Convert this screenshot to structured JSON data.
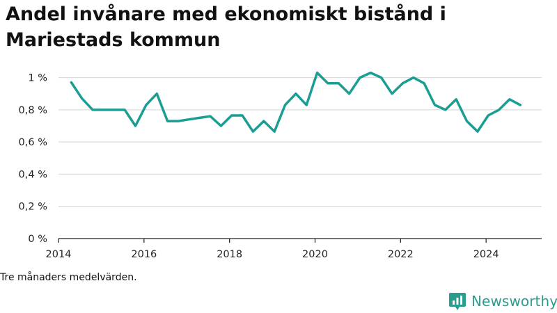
{
  "title": "Andel invånare med ekonomiskt bistånd i Mariestads kommun",
  "footnote": "Tre månaders medelvärden.",
  "brand": {
    "name": "Newsworthy",
    "icon": "newsworthy-logo-icon",
    "color": "#2a9d8f"
  },
  "chart_data": {
    "type": "line",
    "title": "Andel invånare med ekonomiskt bistånd i Mariestads kommun",
    "xlabel": "",
    "ylabel": "",
    "y_unit": "%",
    "ylim": [
      0,
      1.05
    ],
    "xlim": [
      2014.0,
      2025.3
    ],
    "y_ticks": [
      0,
      0.2,
      0.4,
      0.6,
      0.8,
      1.0
    ],
    "y_tick_labels": [
      "0 %",
      "0,2 %",
      "0,4 %",
      "0,6 %",
      "0,8 %",
      "1 %"
    ],
    "x_ticks": [
      2014,
      2016,
      2018,
      2020,
      2022,
      2024
    ],
    "x_tick_labels": [
      "2014",
      "2016",
      "2018",
      "2020",
      "2022",
      "2024"
    ],
    "grid": "horizontal",
    "line_color": "#1a9e94",
    "series": [
      {
        "x": [
          2014.3,
          2014.55,
          2014.8,
          2015.05,
          2015.3,
          2015.55,
          2015.8,
          2016.05,
          2016.3,
          2016.55,
          2016.8,
          2017.05,
          2017.3,
          2017.55,
          2017.8,
          2018.05,
          2018.3,
          2018.55,
          2018.8,
          2019.05,
          2019.3,
          2019.55,
          2019.8,
          2020.05,
          2020.3,
          2020.55,
          2020.8,
          2021.05,
          2021.3,
          2021.55,
          2021.8,
          2022.05,
          2022.3,
          2022.55,
          2022.8,
          2023.05,
          2023.3,
          2023.55,
          2023.8,
          2024.05,
          2024.3,
          2024.55,
          2024.8
        ],
        "y": [
          0.97,
          0.87,
          0.8,
          0.8,
          0.8,
          0.8,
          0.7,
          0.83,
          0.9,
          0.73,
          0.73,
          0.74,
          0.75,
          0.76,
          0.7,
          0.765,
          0.765,
          0.665,
          0.73,
          0.665,
          0.83,
          0.9,
          0.83,
          1.03,
          0.965,
          0.965,
          0.9,
          1.0,
          1.03,
          1.0,
          0.9,
          0.965,
          1.0,
          0.965,
          0.83,
          0.8,
          0.865,
          0.73,
          0.665,
          0.765,
          0.8,
          0.865,
          0.83
        ]
      }
    ]
  }
}
